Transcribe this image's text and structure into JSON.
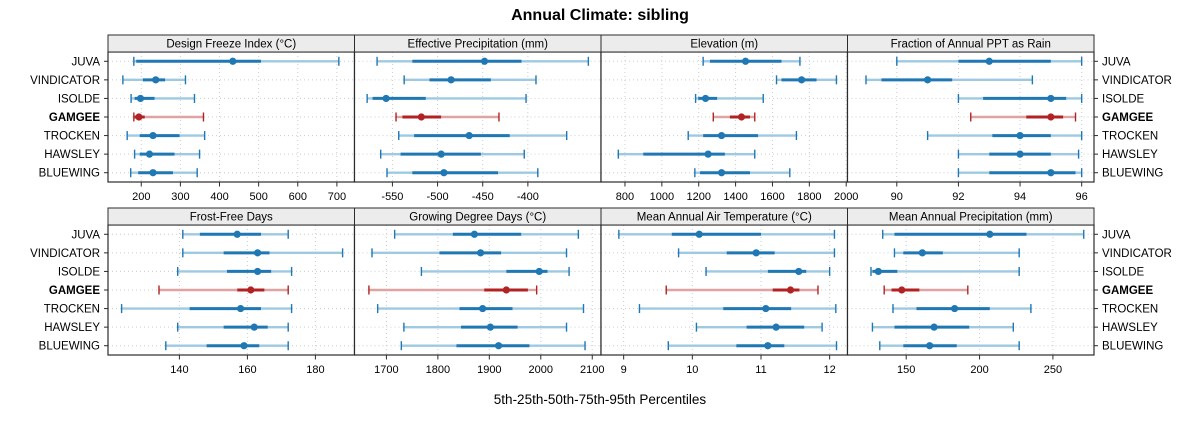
{
  "title": "Annual Climate: sibling",
  "caption": "5th-25th-50th-75th-95th Percentiles",
  "stations": [
    "JUVA",
    "VINDICATOR",
    "ISOLDE",
    "GAMGEE",
    "TROCKEN",
    "HAWSLEY",
    "BLUEWING"
  ],
  "highlight_station": "GAMGEE",
  "colors": {
    "normal": "#1f77b4",
    "normal_light": "#9ec9e2",
    "highlight": "#b22222",
    "highlight_light": "#dfa3a3",
    "grid": "#c9cdd1",
    "strip_bg": "#ececec",
    "panel_border": "#2b2b2b",
    "tick": "#2b2b2b",
    "text": "#000000"
  },
  "chart_data": {
    "type": "scatter",
    "variant": "trellis-percentile-dotplot",
    "percentiles": [
      5,
      25,
      50,
      75,
      95
    ],
    "grid": "dotted",
    "legend_position": "none",
    "rows_of_panels": 2,
    "cols_of_panels": 4,
    "panels": [
      {
        "title": "Design Freeze Index (°C)",
        "xlim": [
          115,
          745
        ],
        "ticks": [
          200,
          300,
          400,
          500,
          600,
          700
        ],
        "series": [
          [
            181,
            187,
            434,
            506,
            705
          ],
          [
            153,
            204,
            237,
            261,
            313
          ],
          [
            174,
            183,
            198,
            234,
            336
          ],
          [
            181,
            183,
            194,
            209,
            359
          ],
          [
            164,
            196,
            230,
            298,
            362
          ],
          [
            183,
            196,
            221,
            285,
            349
          ],
          [
            173,
            192,
            230,
            281,
            343
          ]
        ]
      },
      {
        "title": "Effective Precipitation (mm)",
        "xlim": [
          -592,
          -319
        ],
        "ticks": [
          -550,
          -500,
          -450,
          -400
        ],
        "series": [
          [
            -567,
            -528,
            -448,
            -407,
            -333
          ],
          [
            -537,
            -509,
            -485,
            -441,
            -391
          ],
          [
            -578,
            -572,
            -557,
            -513,
            -402
          ],
          [
            -546,
            -539,
            -518,
            -496,
            -432
          ],
          [
            -543,
            -526,
            -465,
            -420,
            -357
          ],
          [
            -563,
            -541,
            -496,
            -452,
            -404
          ],
          [
            -556,
            -528,
            -493,
            -433,
            -389
          ]
        ]
      },
      {
        "title": "Elevation (m)",
        "xlim": [
          670,
          2007
        ],
        "ticks": [
          800,
          1000,
          1200,
          1400,
          1600,
          1800,
          2000
        ],
        "series": [
          [
            1224,
            1261,
            1454,
            1649,
            1749
          ],
          [
            1622,
            1649,
            1758,
            1839,
            1947
          ],
          [
            1183,
            1197,
            1237,
            1300,
            1550
          ],
          [
            1279,
            1369,
            1432,
            1478,
            1504
          ],
          [
            1143,
            1224,
            1324,
            1522,
            1730
          ],
          [
            764,
            899,
            1251,
            1342,
            1504
          ],
          [
            1179,
            1207,
            1324,
            1478,
            1694
          ]
        ]
      },
      {
        "title": "Fraction of Annual PPT as Rain",
        "xlim": [
          88.4,
          96.4
        ],
        "ticks": [
          90,
          92,
          94,
          96
        ],
        "series": [
          [
            90.0,
            92.0,
            93.0,
            95.0,
            96.0
          ],
          [
            89.0,
            89.5,
            91.0,
            91.8,
            94.4
          ],
          [
            92.0,
            92.8,
            95.0,
            95.5,
            96.0
          ],
          [
            92.4,
            94.2,
            95.0,
            95.4,
            95.8
          ],
          [
            91.0,
            93.1,
            94.0,
            95.0,
            96.0
          ],
          [
            92.0,
            93.0,
            94.0,
            95.0,
            95.9
          ],
          [
            92.0,
            93.0,
            95.0,
            95.8,
            96.0
          ]
        ]
      },
      {
        "title": "Frost-Free Days",
        "xlim": [
          119,
          191.5
        ],
        "ticks": [
          140,
          160,
          180
        ],
        "series": [
          [
            141,
            146,
            157,
            164,
            172
          ],
          [
            141,
            153,
            163,
            166.5,
            188
          ],
          [
            139.5,
            154,
            163,
            167,
            173
          ],
          [
            134,
            157,
            161,
            165,
            172
          ],
          [
            123,
            143,
            158,
            164,
            173
          ],
          [
            139.5,
            153,
            162,
            166,
            172
          ],
          [
            136,
            148,
            159,
            163.5,
            172
          ]
        ]
      },
      {
        "title": "Growing Degree Days (°C)",
        "xlim": [
          1638,
          2117
        ],
        "ticks": [
          1700,
          1800,
          1900,
          2000,
          2100
        ],
        "series": [
          [
            1716,
            1829,
            1871,
            1962,
            2073
          ],
          [
            1672,
            1803,
            1883,
            1923,
            2050
          ],
          [
            1768,
            1933,
            1997,
            2013,
            2055
          ],
          [
            1666,
            1890,
            1933,
            1975,
            1992
          ],
          [
            1683,
            1842,
            1887,
            1945,
            2083
          ],
          [
            1734,
            1845,
            1902,
            1955,
            2050
          ],
          [
            1729,
            1836,
            1918,
            1978,
            2086
          ]
        ]
      },
      {
        "title": "Mean Annual Air Temperature (°C)",
        "xlim": [
          8.67,
          12.26
        ],
        "ticks": [
          9,
          10,
          11,
          12
        ],
        "series": [
          [
            8.93,
            9.7,
            10.1,
            11.0,
            12.07
          ],
          [
            9.8,
            10.5,
            10.93,
            11.2,
            12.07
          ],
          [
            10.2,
            11.1,
            11.55,
            11.66,
            12.0
          ],
          [
            9.62,
            11.17,
            11.43,
            11.56,
            11.83
          ],
          [
            9.23,
            10.45,
            11.07,
            11.44,
            12.09
          ],
          [
            10.06,
            10.79,
            11.22,
            11.63,
            11.89
          ],
          [
            9.65,
            10.64,
            11.1,
            11.34,
            12.1
          ]
        ]
      },
      {
        "title": "Mean Annual Precipitation (mm)",
        "xlim": [
          110,
          278
        ],
        "ticks": [
          150,
          200,
          250
        ],
        "series": [
          [
            134,
            142,
            207,
            232,
            271
          ],
          [
            142,
            148,
            161,
            175,
            227
          ],
          [
            126,
            127,
            131,
            144,
            227
          ],
          [
            135,
            140,
            147,
            159,
            192
          ],
          [
            141,
            157,
            183,
            207,
            235
          ],
          [
            127,
            142,
            169,
            193,
            223
          ],
          [
            132,
            148,
            166,
            184.5,
            227
          ]
        ]
      }
    ]
  }
}
